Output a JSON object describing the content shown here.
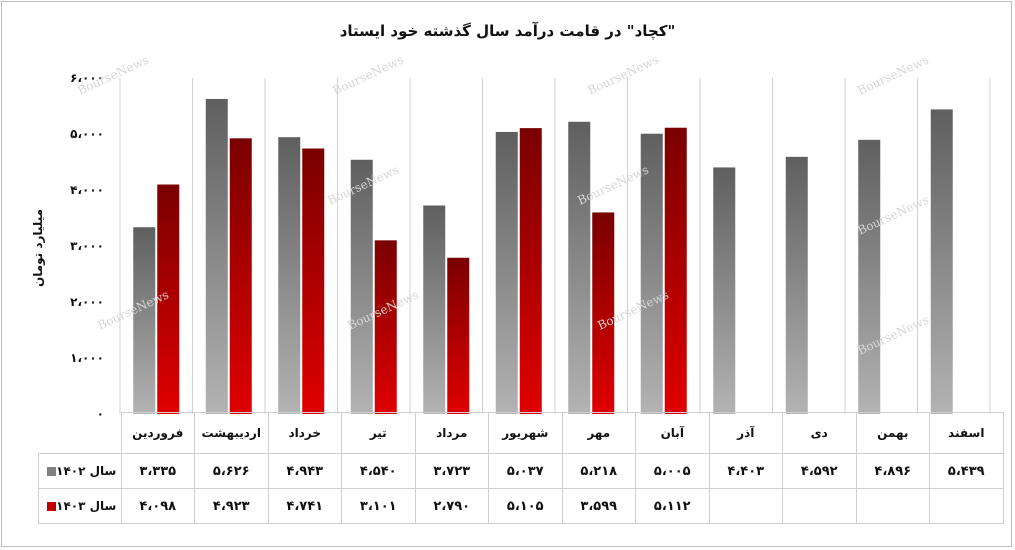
{
  "chart_data": {
    "type": "bar",
    "title": "\"کچاد\" در قامت درآمد سال گذشته خود ایستاد",
    "ylabel": "میلیارد تومان",
    "ylim": [
      0,
      6000
    ],
    "yticks": [
      "۰",
      "۱،۰۰۰",
      "۲،۰۰۰",
      "۳،۰۰۰",
      "۴،۰۰۰",
      "۵،۰۰۰",
      "۶،۰۰۰"
    ],
    "grid": false,
    "watermark": "BourseNews",
    "categories": [
      "فروردین",
      "اردیبهشت",
      "خرداد",
      "تیر",
      "مرداد",
      "شهریور",
      "مهر",
      "آبان",
      "آذر",
      "دی",
      "بهمن",
      "اسفند"
    ],
    "series": [
      {
        "name": "سال ۱۴۰۲",
        "color": "#808080",
        "values": [
          3335,
          5626,
          4943,
          4540,
          3723,
          5037,
          5218,
          5005,
          4403,
          4592,
          4896,
          5439
        ],
        "labels": [
          "۳،۳۳۵",
          "۵،۶۲۶",
          "۴،۹۴۳",
          "۴،۵۴۰",
          "۳،۷۲۳",
          "۵،۰۳۷",
          "۵،۲۱۸",
          "۵،۰۰۵",
          "۴،۴۰۳",
          "۴،۵۹۲",
          "۴،۸۹۶",
          "۵،۴۳۹"
        ]
      },
      {
        "name": "سال ۱۴۰۳",
        "color": "#c00000",
        "values": [
          4098,
          4923,
          4741,
          3101,
          2790,
          5105,
          3599,
          5112,
          null,
          null,
          null,
          null
        ],
        "labels": [
          "۴،۰۹۸",
          "۴،۹۲۳",
          "۴،۷۴۱",
          "۳،۱۰۱",
          "۲،۷۹۰",
          "۵،۱۰۵",
          "۳،۵۹۹",
          "۵،۱۱۲",
          "",
          "",
          "",
          ""
        ]
      }
    ]
  }
}
